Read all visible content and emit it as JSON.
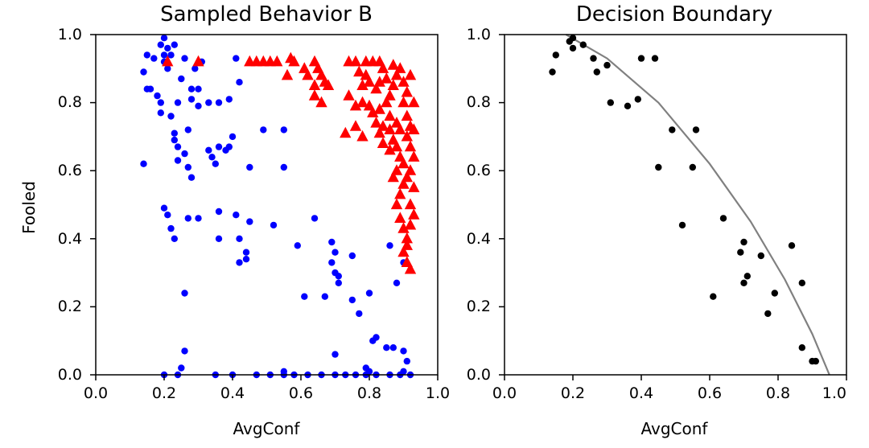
{
  "chart_data": [
    {
      "type": "scatter",
      "title": "Sampled Behavior B",
      "xlabel": "AvgConf",
      "ylabel": "Fooled",
      "xlim": [
        0.0,
        1.0
      ],
      "ylim": [
        0.0,
        1.0
      ],
      "xticks": [
        "0.0",
        "0.2",
        "0.4",
        "0.6",
        "0.8",
        "1.0"
      ],
      "yticks": [
        "0.0",
        "0.2",
        "0.4",
        "0.6",
        "0.8",
        "1.0"
      ],
      "grid": false,
      "series": [
        {
          "name": "class-blue",
          "marker": "circle",
          "color": "#0000ff",
          "points": [
            [
              0.14,
              0.89
            ],
            [
              0.15,
              0.94
            ],
            [
              0.15,
              0.84
            ],
            [
              0.16,
              0.84
            ],
            [
              0.17,
              0.93
            ],
            [
              0.18,
              0.82
            ],
            [
              0.19,
              0.8
            ],
            [
              0.19,
              0.77
            ],
            [
              0.19,
              0.97
            ],
            [
              0.2,
              0.99
            ],
            [
              0.2,
              0.94
            ],
            [
              0.21,
              0.96
            ],
            [
              0.2,
              0.92
            ],
            [
              0.22,
              0.94
            ],
            [
              0.21,
              0.9
            ],
            [
              0.23,
              0.97
            ],
            [
              0.22,
              0.76
            ],
            [
              0.23,
              0.71
            ],
            [
              0.23,
              0.69
            ],
            [
              0.25,
              0.87
            ],
            [
              0.26,
              0.93
            ],
            [
              0.24,
              0.8
            ],
            [
              0.24,
              0.67
            ],
            [
              0.26,
              0.65
            ],
            [
              0.24,
              0.63
            ],
            [
              0.27,
              0.61
            ],
            [
              0.27,
              0.72
            ],
            [
              0.28,
              0.84
            ],
            [
              0.28,
              0.81
            ],
            [
              0.29,
              0.9
            ],
            [
              0.3,
              0.84
            ],
            [
              0.3,
              0.79
            ],
            [
              0.31,
              0.92
            ],
            [
              0.33,
              0.8
            ],
            [
              0.36,
              0.8
            ],
            [
              0.33,
              0.66
            ],
            [
              0.34,
              0.64
            ],
            [
              0.35,
              0.62
            ],
            [
              0.36,
              0.67
            ],
            [
              0.38,
              0.66
            ],
            [
              0.39,
              0.67
            ],
            [
              0.4,
              0.7
            ],
            [
              0.39,
              0.81
            ],
            [
              0.41,
              0.93
            ],
            [
              0.42,
              0.86
            ],
            [
              0.14,
              0.62
            ],
            [
              0.28,
              0.58
            ],
            [
              0.2,
              0.49
            ],
            [
              0.21,
              0.47
            ],
            [
              0.22,
              0.43
            ],
            [
              0.23,
              0.4
            ],
            [
              0.27,
              0.46
            ],
            [
              0.3,
              0.46
            ],
            [
              0.36,
              0.48
            ],
            [
              0.36,
              0.4
            ],
            [
              0.41,
              0.47
            ],
            [
              0.45,
              0.45
            ],
            [
              0.42,
              0.4
            ],
            [
              0.44,
              0.36
            ],
            [
              0.44,
              0.34
            ],
            [
              0.42,
              0.33
            ],
            [
              0.52,
              0.44
            ],
            [
              0.49,
              0.72
            ],
            [
              0.55,
              0.72
            ],
            [
              0.45,
              0.61
            ],
            [
              0.55,
              0.61
            ],
            [
              0.26,
              0.24
            ],
            [
              0.26,
              0.07
            ],
            [
              0.25,
              0.02
            ],
            [
              0.2,
              0.0
            ],
            [
              0.24,
              0.0
            ],
            [
              0.35,
              0.0
            ],
            [
              0.4,
              0.0
            ],
            [
              0.47,
              0.0
            ],
            [
              0.51,
              0.0
            ],
            [
              0.55,
              0.0
            ],
            [
              0.58,
              0.0
            ],
            [
              0.62,
              0.0
            ],
            [
              0.66,
              0.0
            ],
            [
              0.7,
              0.0
            ],
            [
              0.73,
              0.0
            ],
            [
              0.76,
              0.0
            ],
            [
              0.79,
              0.0
            ],
            [
              0.82,
              0.0
            ],
            [
              0.86,
              0.0
            ],
            [
              0.89,
              0.0
            ],
            [
              0.92,
              0.0
            ],
            [
              0.55,
              0.01
            ],
            [
              0.8,
              0.01
            ],
            [
              0.9,
              0.01
            ],
            [
              0.64,
              0.46
            ],
            [
              0.59,
              0.38
            ],
            [
              0.69,
              0.39
            ],
            [
              0.7,
              0.36
            ],
            [
              0.69,
              0.33
            ],
            [
              0.7,
              0.3
            ],
            [
              0.71,
              0.29
            ],
            [
              0.71,
              0.27
            ],
            [
              0.67,
              0.23
            ],
            [
              0.61,
              0.23
            ],
            [
              0.75,
              0.22
            ],
            [
              0.75,
              0.35
            ],
            [
              0.77,
              0.18
            ],
            [
              0.8,
              0.24
            ],
            [
              0.7,
              0.06
            ],
            [
              0.81,
              0.1
            ],
            [
              0.82,
              0.11
            ],
            [
              0.79,
              0.02
            ],
            [
              0.85,
              0.08
            ],
            [
              0.87,
              0.08
            ],
            [
              0.9,
              0.07
            ],
            [
              0.91,
              0.04
            ],
            [
              0.88,
              0.27
            ],
            [
              0.86,
              0.38
            ],
            [
              0.9,
              0.33
            ]
          ]
        },
        {
          "name": "class-red",
          "marker": "triangle",
          "color": "#ff0000",
          "points": [
            [
              0.21,
              0.92
            ],
            [
              0.3,
              0.92
            ],
            [
              0.45,
              0.92
            ],
            [
              0.47,
              0.92
            ],
            [
              0.49,
              0.92
            ],
            [
              0.51,
              0.92
            ],
            [
              0.53,
              0.92
            ],
            [
              0.57,
              0.93
            ],
            [
              0.58,
              0.92
            ],
            [
              0.56,
              0.88
            ],
            [
              0.61,
              0.9
            ],
            [
              0.62,
              0.88
            ],
            [
              0.64,
              0.92
            ],
            [
              0.65,
              0.9
            ],
            [
              0.66,
              0.88
            ],
            [
              0.67,
              0.86
            ],
            [
              0.64,
              0.85
            ],
            [
              0.68,
              0.85
            ],
            [
              0.64,
              0.82
            ],
            [
              0.66,
              0.8
            ],
            [
              0.74,
              0.92
            ],
            [
              0.76,
              0.92
            ],
            [
              0.79,
              0.92
            ],
            [
              0.81,
              0.92
            ],
            [
              0.83,
              0.92
            ],
            [
              0.84,
              0.9
            ],
            [
              0.77,
              0.89
            ],
            [
              0.79,
              0.88
            ],
            [
              0.78,
              0.85
            ],
            [
              0.8,
              0.86
            ],
            [
              0.82,
              0.84
            ],
            [
              0.83,
              0.86
            ],
            [
              0.74,
              0.82
            ],
            [
              0.76,
              0.79
            ],
            [
              0.78,
              0.8
            ],
            [
              0.8,
              0.79
            ],
            [
              0.81,
              0.77
            ],
            [
              0.83,
              0.78
            ],
            [
              0.85,
              0.8
            ],
            [
              0.86,
              0.76
            ],
            [
              0.82,
              0.74
            ],
            [
              0.84,
              0.73
            ],
            [
              0.86,
              0.72
            ],
            [
              0.76,
              0.73
            ],
            [
              0.88,
              0.74
            ],
            [
              0.89,
              0.72
            ],
            [
              0.73,
              0.71
            ],
            [
              0.78,
              0.7
            ],
            [
              0.83,
              0.71
            ],
            [
              0.87,
              0.69
            ],
            [
              0.84,
              0.68
            ],
            [
              0.86,
              0.66
            ],
            [
              0.88,
              0.67
            ],
            [
              0.89,
              0.64
            ],
            [
              0.9,
              0.62
            ],
            [
              0.88,
              0.6
            ],
            [
              0.87,
              0.58
            ],
            [
              0.9,
              0.56
            ],
            [
              0.89,
              0.53
            ],
            [
              0.88,
              0.5
            ],
            [
              0.89,
              0.46
            ],
            [
              0.9,
              0.43
            ],
            [
              0.91,
              0.4
            ],
            [
              0.9,
              0.36
            ],
            [
              0.91,
              0.33
            ],
            [
              0.92,
              0.31
            ],
            [
              0.86,
              0.82
            ],
            [
              0.87,
              0.85
            ],
            [
              0.88,
              0.88
            ],
            [
              0.89,
              0.9
            ],
            [
              0.9,
              0.86
            ],
            [
              0.91,
              0.83
            ],
            [
              0.9,
              0.8
            ],
            [
              0.91,
              0.76
            ],
            [
              0.92,
              0.73
            ],
            [
              0.91,
              0.7
            ],
            [
              0.92,
              0.67
            ],
            [
              0.93,
              0.64
            ],
            [
              0.92,
              0.6
            ],
            [
              0.91,
              0.58
            ],
            [
              0.93,
              0.55
            ],
            [
              0.92,
              0.5
            ],
            [
              0.93,
              0.47
            ],
            [
              0.92,
              0.44
            ],
            [
              0.91,
              0.38
            ],
            [
              0.85,
              0.87
            ],
            [
              0.87,
              0.91
            ],
            [
              0.92,
              0.88
            ],
            [
              0.93,
              0.8
            ],
            [
              0.93,
              0.72
            ]
          ]
        }
      ]
    },
    {
      "type": "scatter",
      "title": "Decision Boundary",
      "xlabel": "AvgConf",
      "ylabel": "",
      "xlim": [
        0.0,
        1.0
      ],
      "ylim": [
        0.0,
        1.0
      ],
      "xticks": [
        "0.0",
        "0.2",
        "0.4",
        "0.6",
        "0.8",
        "1.0"
      ],
      "yticks": [
        "0.0",
        "0.2",
        "0.4",
        "0.6",
        "0.8",
        "1.0"
      ],
      "grid": false,
      "series": [
        {
          "name": "boundary-samples",
          "marker": "circle",
          "color": "#000000",
          "points": [
            [
              0.14,
              0.89
            ],
            [
              0.15,
              0.94
            ],
            [
              0.19,
              0.98
            ],
            [
              0.2,
              0.96
            ],
            [
              0.2,
              0.99
            ],
            [
              0.23,
              0.97
            ],
            [
              0.26,
              0.93
            ],
            [
              0.27,
              0.89
            ],
            [
              0.3,
              0.91
            ],
            [
              0.31,
              0.8
            ],
            [
              0.36,
              0.79
            ],
            [
              0.39,
              0.81
            ],
            [
              0.4,
              0.93
            ],
            [
              0.44,
              0.93
            ],
            [
              0.49,
              0.72
            ],
            [
              0.56,
              0.72
            ],
            [
              0.45,
              0.61
            ],
            [
              0.55,
              0.61
            ],
            [
              0.52,
              0.44
            ],
            [
              0.64,
              0.46
            ],
            [
              0.7,
              0.39
            ],
            [
              0.69,
              0.36
            ],
            [
              0.75,
              0.35
            ],
            [
              0.71,
              0.29
            ],
            [
              0.7,
              0.27
            ],
            [
              0.61,
              0.23
            ],
            [
              0.79,
              0.24
            ],
            [
              0.77,
              0.18
            ],
            [
              0.84,
              0.38
            ],
            [
              0.87,
              0.27
            ],
            [
              0.87,
              0.08
            ],
            [
              0.9,
              0.04
            ],
            [
              0.91,
              0.04
            ]
          ]
        }
      ],
      "boundary_line": {
        "color": "#808080",
        "points": [
          [
            0.18,
            1.0
          ],
          [
            0.3,
            0.93
          ],
          [
            0.45,
            0.8
          ],
          [
            0.6,
            0.62
          ],
          [
            0.72,
            0.45
          ],
          [
            0.82,
            0.28
          ],
          [
            0.9,
            0.12
          ],
          [
            0.95,
            0.0
          ]
        ]
      }
    }
  ]
}
